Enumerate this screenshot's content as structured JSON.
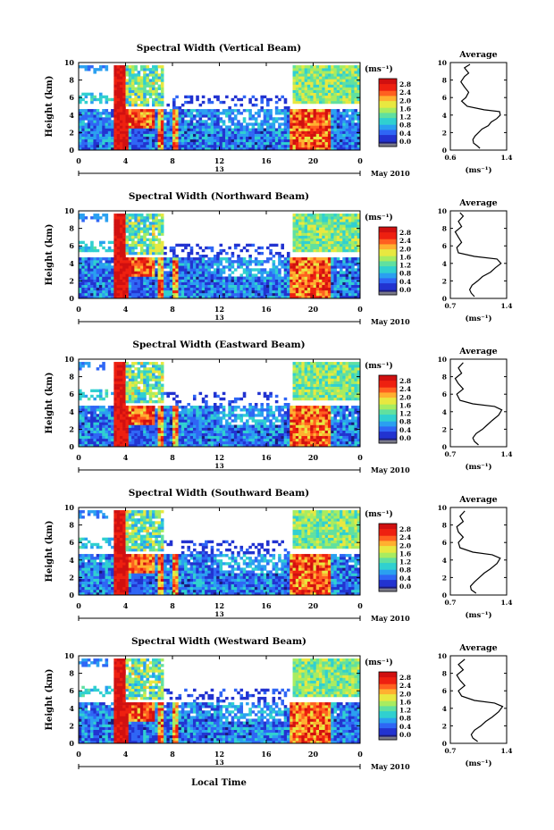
{
  "figure": {
    "xlabel": "Local Time",
    "date_label": "May 2010",
    "day_marker": "13",
    "unit_label": "(ms⁻¹)",
    "avg_title": "Average",
    "avg_xlabel": "(ms⁻¹)"
  },
  "colors": {
    "colormap": [
      "#1a1a7a",
      "#2233d0",
      "#2f66f5",
      "#2aa0f0",
      "#30d0d0",
      "#60e0a0",
      "#a8ec60",
      "#e8e840",
      "#ffb030",
      "#ff6020",
      "#ee2010",
      "#d01010"
    ],
    "grey_floor": "#7a7a88"
  },
  "chart_data": [
    {
      "type": "heatmap",
      "title": "Spectral Width (Vertical Beam)",
      "xlabel": "Local Time",
      "ylabel": "Height (km)",
      "xlim": [
        0,
        24
      ],
      "ylim": [
        0,
        10
      ],
      "xticks": [
        "0",
        "4",
        "8",
        "12",
        "16",
        "20",
        "0"
      ],
      "yticks": [
        "0",
        "2",
        "4",
        "6",
        "8",
        "10"
      ],
      "colorbar": {
        "label": "(ms⁻¹)",
        "ticks": [
          "0.0",
          "0.4",
          "0.8",
          "1.2",
          "1.6",
          "2.0",
          "2.4",
          "2.8"
        ],
        "range": [
          0.0,
          2.8
        ]
      },
      "average": {
        "title": "Average",
        "xlabel": "(ms⁻¹)",
        "xlim": [
          0.6,
          1.4
        ],
        "xticks": [
          "0.6",
          "1.4"
        ],
        "ylim": [
          0,
          10
        ],
        "yticks": [
          "0",
          "2",
          "4",
          "6",
          "8",
          "10"
        ],
        "profile": [
          [
            1.02,
            0.2
          ],
          [
            0.98,
            0.5
          ],
          [
            0.93,
            0.8
          ],
          [
            0.92,
            1.2
          ],
          [
            0.95,
            1.6
          ],
          [
            1.0,
            2.0
          ],
          [
            1.05,
            2.4
          ],
          [
            1.14,
            2.8
          ],
          [
            1.18,
            3.2
          ],
          [
            1.26,
            3.6
          ],
          [
            1.31,
            4.0
          ],
          [
            1.3,
            4.4
          ],
          [
            1.08,
            4.6
          ],
          [
            0.84,
            5.0
          ],
          [
            0.76,
            5.6
          ],
          [
            0.82,
            6.0
          ],
          [
            0.86,
            6.6
          ],
          [
            0.8,
            7.2
          ],
          [
            0.75,
            7.8
          ],
          [
            0.8,
            8.4
          ],
          [
            0.86,
            8.8
          ],
          [
            0.8,
            9.4
          ],
          [
            0.88,
            9.8
          ]
        ]
      }
    },
    {
      "type": "heatmap",
      "title": "Spectral Width (Northward Beam)",
      "xlabel": "Local Time",
      "ylabel": "Height (km)",
      "xlim": [
        0,
        24
      ],
      "ylim": [
        0,
        10
      ],
      "xticks": [
        "0",
        "4",
        "8",
        "12",
        "16",
        "20",
        "0"
      ],
      "yticks": [
        "0",
        "2",
        "4",
        "6",
        "8",
        "10"
      ],
      "colorbar": {
        "label": "(ms⁻¹)",
        "ticks": [
          "0.0",
          "0.4",
          "0.8",
          "1.2",
          "1.6",
          "2.0",
          "2.4",
          "2.8"
        ],
        "range": [
          0.0,
          2.8
        ]
      },
      "average": {
        "title": "Average",
        "xlabel": "(ms⁻¹)",
        "xlim": [
          0.7,
          1.4
        ],
        "xticks": [
          "0.7",
          "1.4"
        ],
        "ylim": [
          0,
          10
        ],
        "yticks": [
          "0",
          "2",
          "4",
          "6",
          "8",
          "10"
        ],
        "profile": [
          [
            1.0,
            0.2
          ],
          [
            0.96,
            0.6
          ],
          [
            0.94,
            1.0
          ],
          [
            0.97,
            1.5
          ],
          [
            1.04,
            2.0
          ],
          [
            1.1,
            2.5
          ],
          [
            1.2,
            3.0
          ],
          [
            1.26,
            3.5
          ],
          [
            1.33,
            4.0
          ],
          [
            1.28,
            4.5
          ],
          [
            1.0,
            4.8
          ],
          [
            0.8,
            5.2
          ],
          [
            0.78,
            5.8
          ],
          [
            0.84,
            6.4
          ],
          [
            0.8,
            7.0
          ],
          [
            0.76,
            7.6
          ],
          [
            0.84,
            8.2
          ],
          [
            0.8,
            8.8
          ],
          [
            0.86,
            9.4
          ],
          [
            0.82,
            9.8
          ]
        ]
      }
    },
    {
      "type": "heatmap",
      "title": "Spectral Width (Eastward Beam)",
      "xlabel": "Local Time",
      "ylabel": "Height (km)",
      "xlim": [
        0,
        24
      ],
      "ylim": [
        0,
        10
      ],
      "xticks": [
        "0",
        "4",
        "8",
        "12",
        "16",
        "20",
        "0"
      ],
      "yticks": [
        "0",
        "2",
        "4",
        "6",
        "8",
        "10"
      ],
      "colorbar": {
        "label": "(ms⁻¹)",
        "ticks": [
          "0.0",
          "0.4",
          "0.8",
          "1.2",
          "1.6",
          "2.0",
          "2.4",
          "2.8"
        ],
        "range": [
          0.0,
          2.8
        ]
      },
      "average": {
        "title": "Average",
        "xlabel": "(ms⁻¹)",
        "xlim": [
          0.7,
          1.4
        ],
        "xticks": [
          "0.7",
          "1.4"
        ],
        "ylim": [
          0,
          10
        ],
        "yticks": [
          "0",
          "2",
          "4",
          "6",
          "8",
          "10"
        ],
        "profile": [
          [
            1.05,
            0.2
          ],
          [
            1.0,
            0.6
          ],
          [
            0.98,
            1.0
          ],
          [
            1.02,
            1.5
          ],
          [
            1.1,
            2.0
          ],
          [
            1.16,
            2.5
          ],
          [
            1.22,
            3.0
          ],
          [
            1.3,
            3.6
          ],
          [
            1.34,
            4.2
          ],
          [
            1.25,
            4.6
          ],
          [
            0.98,
            4.9
          ],
          [
            0.82,
            5.3
          ],
          [
            0.78,
            6.0
          ],
          [
            0.86,
            6.6
          ],
          [
            0.8,
            7.2
          ],
          [
            0.76,
            7.8
          ],
          [
            0.84,
            8.4
          ],
          [
            0.8,
            9.0
          ],
          [
            0.86,
            9.6
          ]
        ]
      }
    },
    {
      "type": "heatmap",
      "title": "Spectral Width (Southward Beam)",
      "xlabel": "Local Time",
      "ylabel": "Height (km)",
      "xlim": [
        0,
        24
      ],
      "ylim": [
        0,
        10
      ],
      "xticks": [
        "0",
        "4",
        "8",
        "12",
        "16",
        "20",
        "0"
      ],
      "yticks": [
        "0",
        "2",
        "4",
        "6",
        "8",
        "10"
      ],
      "colorbar": {
        "label": "(ms⁻¹)",
        "ticks": [
          "0.0",
          "0.4",
          "0.8",
          "1.2",
          "1.6",
          "2.0",
          "2.4",
          "2.8"
        ],
        "range": [
          0.0,
          2.8
        ]
      },
      "average": {
        "title": "Average",
        "xlabel": "(ms⁻¹)",
        "xlim": [
          0.7,
          1.4
        ],
        "xticks": [
          "0.7",
          "1.4"
        ],
        "ylim": [
          0,
          10
        ],
        "yticks": [
          "0",
          "2",
          "4",
          "6",
          "8",
          "10"
        ],
        "profile": [
          [
            1.02,
            0.2
          ],
          [
            0.96,
            0.6
          ],
          [
            0.95,
            1.0
          ],
          [
            1.0,
            1.5
          ],
          [
            1.06,
            2.0
          ],
          [
            1.12,
            2.5
          ],
          [
            1.2,
            3.0
          ],
          [
            1.28,
            3.6
          ],
          [
            1.32,
            4.2
          ],
          [
            1.22,
            4.6
          ],
          [
            0.98,
            4.9
          ],
          [
            0.82,
            5.4
          ],
          [
            0.8,
            6.0
          ],
          [
            0.86,
            6.6
          ],
          [
            0.8,
            7.2
          ],
          [
            0.78,
            7.8
          ],
          [
            0.86,
            8.4
          ],
          [
            0.82,
            9.0
          ],
          [
            0.88,
            9.6
          ]
        ]
      }
    },
    {
      "type": "heatmap",
      "title": "Spectral Width (Westward Beam)",
      "xlabel": "Local Time",
      "ylabel": "Height (km)",
      "xlim": [
        0,
        24
      ],
      "ylim": [
        0,
        10
      ],
      "xticks": [
        "0",
        "4",
        "8",
        "12",
        "16",
        "20",
        "0"
      ],
      "yticks": [
        "0",
        "2",
        "4",
        "6",
        "8",
        "10"
      ],
      "colorbar": {
        "label": "(ms⁻¹)",
        "ticks": [
          "0.0",
          "0.4",
          "0.8",
          "1.2",
          "1.6",
          "2.0",
          "2.4",
          "2.8"
        ],
        "range": [
          0.0,
          2.8
        ]
      },
      "average": {
        "title": "Average",
        "xlabel": "(ms⁻¹)",
        "xlim": [
          0.7,
          1.4
        ],
        "xticks": [
          "0.7",
          "1.4"
        ],
        "ylim": [
          0,
          10
        ],
        "yticks": [
          "0",
          "2",
          "4",
          "6",
          "8",
          "10"
        ],
        "profile": [
          [
            1.04,
            0.2
          ],
          [
            0.98,
            0.6
          ],
          [
            0.96,
            1.0
          ],
          [
            1.0,
            1.5
          ],
          [
            1.08,
            2.0
          ],
          [
            1.14,
            2.5
          ],
          [
            1.22,
            3.0
          ],
          [
            1.3,
            3.6
          ],
          [
            1.35,
            4.2
          ],
          [
            1.25,
            4.6
          ],
          [
            1.0,
            4.9
          ],
          [
            0.84,
            5.4
          ],
          [
            0.8,
            6.0
          ],
          [
            0.88,
            6.6
          ],
          [
            0.82,
            7.2
          ],
          [
            0.78,
            7.8
          ],
          [
            0.86,
            8.4
          ],
          [
            0.8,
            9.0
          ],
          [
            0.88,
            9.6
          ]
        ]
      }
    }
  ]
}
